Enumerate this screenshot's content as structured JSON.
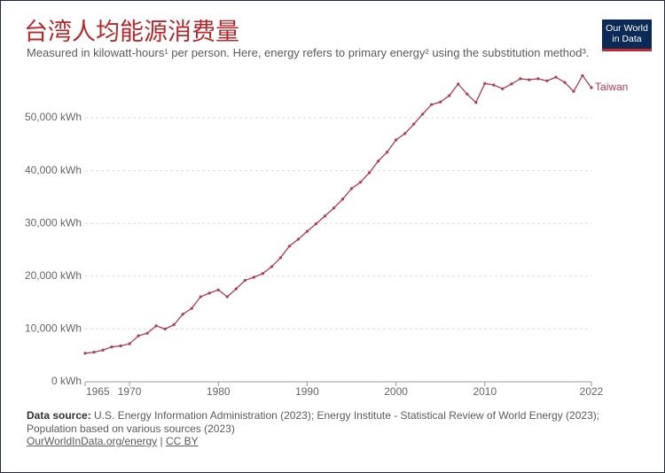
{
  "chart_data": {
    "type": "line",
    "title": "台湾人均能源消费量",
    "subtitle": "Measured in kilowatt-hours¹ per person. Here, energy refers to primary energy² using the substitution method³.",
    "logo": [
      "Our World",
      "in Data"
    ],
    "source_label": "Data source:",
    "source_text": "U.S. Energy Information Administration (2023); Energy Institute - Statistical Review of World Energy (2023); Population based on various sources (2023)",
    "link": "OurWorldInData.org/energy",
    "separator": "|",
    "license": "CC BY",
    "x": [
      1965,
      1966,
      1967,
      1968,
      1969,
      1970,
      1971,
      1972,
      1973,
      1974,
      1975,
      1976,
      1977,
      1978,
      1979,
      1980,
      1981,
      1982,
      1983,
      1984,
      1985,
      1986,
      1987,
      1988,
      1989,
      1990,
      1991,
      1992,
      1993,
      1994,
      1995,
      1996,
      1997,
      1998,
      1999,
      2000,
      2001,
      2002,
      2003,
      2004,
      2005,
      2006,
      2007,
      2008,
      2009,
      2010,
      2011,
      2012,
      2013,
      2014,
      2015,
      2016,
      2017,
      2018,
      2019,
      2020,
      2021,
      2022
    ],
    "series": [
      {
        "name": "Taiwan",
        "color": "#b13b50",
        "values": [
          5400,
          5600,
          6000,
          6600,
          6800,
          7200,
          8700,
          9200,
          10600,
          10000,
          10800,
          12800,
          13900,
          16100,
          16800,
          17400,
          16100,
          17600,
          19200,
          19800,
          20500,
          21800,
          23500,
          25700,
          27000,
          28500,
          29900,
          31400,
          32900,
          34600,
          36600,
          37800,
          39600,
          41800,
          43500,
          45800,
          47000,
          48800,
          50700,
          52500,
          53000,
          54200,
          56400,
          54500,
          52900,
          56500,
          56200,
          55500,
          56400,
          57400,
          57200,
          57400,
          57000,
          57700,
          56700,
          55000,
          58000,
          55700
        ]
      }
    ],
    "xlim": [
      1965,
      2022
    ],
    "xticks": [
      1965,
      1970,
      1980,
      1990,
      2000,
      2010,
      2022
    ],
    "ylim": [
      0,
      58000
    ],
    "yticks": [
      {
        "value": 0,
        "label": "0 kWh"
      },
      {
        "value": 10000,
        "label": "10,000 kWh"
      },
      {
        "value": 20000,
        "label": "20,000 kWh"
      },
      {
        "value": 30000,
        "label": "30,000 kWh"
      },
      {
        "value": 40000,
        "label": "40,000 kWh"
      },
      {
        "value": 50000,
        "label": "50,000 kWh"
      }
    ],
    "grid": true
  }
}
